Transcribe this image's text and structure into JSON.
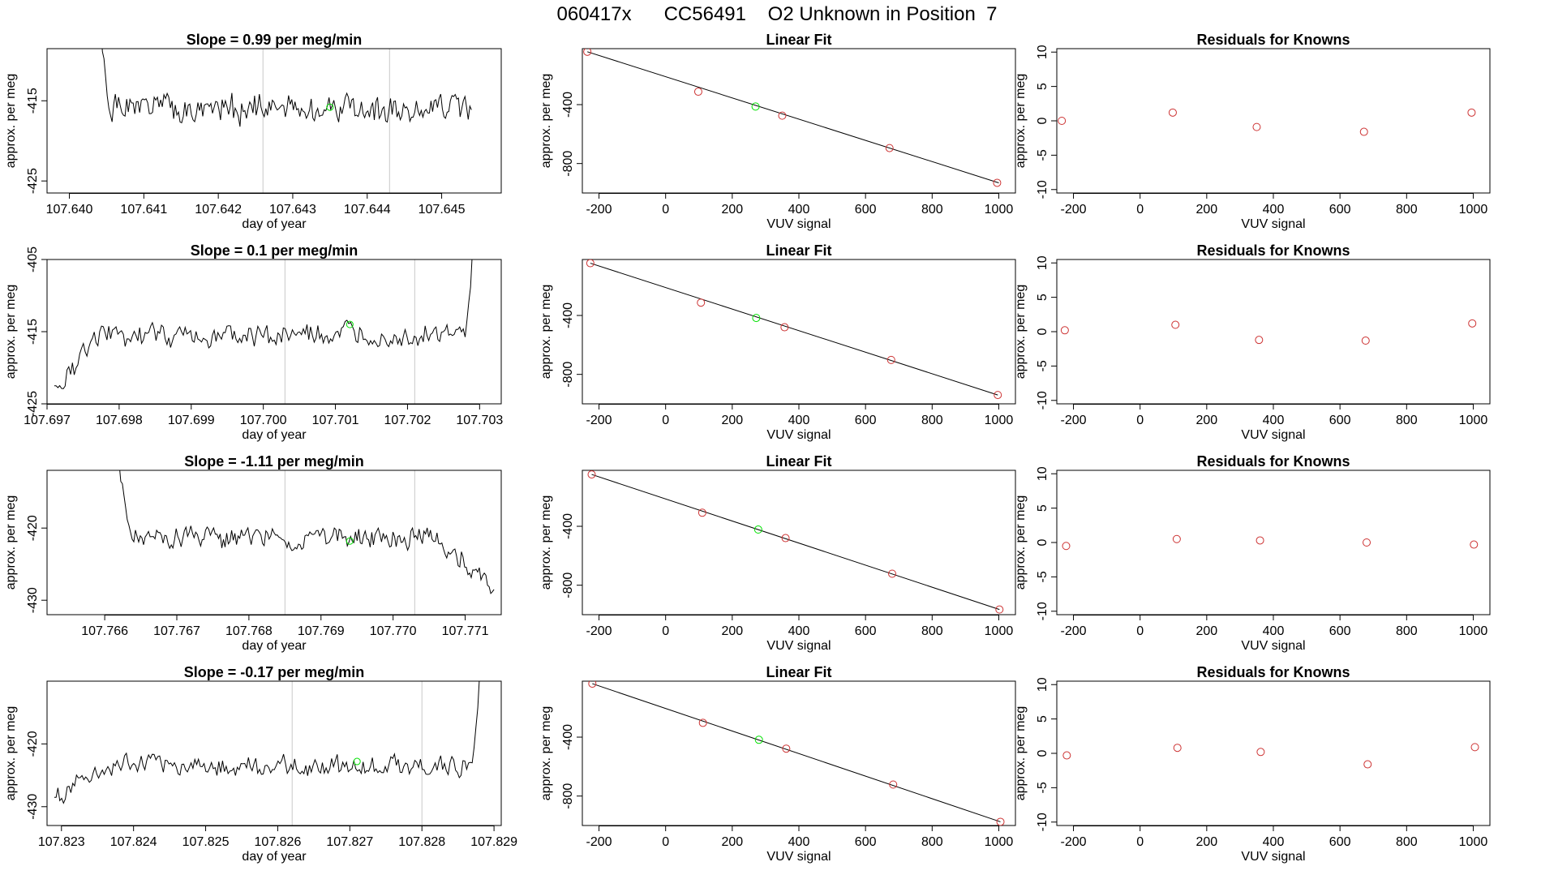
{
  "page_title": "060417x      CC56491    O2 Unknown in Position  7",
  "chart_data": [
    {
      "type": "line",
      "panel": "timeseries",
      "row": 1,
      "title": "Slope =  0.99  per meg/min",
      "xlabel": "day of year",
      "ylabel": "approx. per meg",
      "xlim": [
        107.6397,
        107.6458
      ],
      "ylim": [
        -426.5,
        -408.5
      ],
      "xticks": [
        107.64,
        107.641,
        107.642,
        107.643,
        107.644,
        107.645
      ],
      "xtick_labels": [
        "107.640",
        "107.641",
        "107.642",
        "107.643",
        "107.644",
        "107.645"
      ],
      "yticks": [
        -415,
        -425
      ],
      "ytick_labels": [
        "-415",
        "-425"
      ],
      "vlines": [
        107.6426,
        107.6443
      ],
      "line": {
        "x_start": 107.6404,
        "x_end": 107.6454,
        "level": -416.0,
        "noise": 2.2,
        "start_from": -405,
        "start_len": 5,
        "end_to": -417.0,
        "end_len": 0
      },
      "marker": {
        "x": 107.6435,
        "y": -415.8
      },
      "grid": false,
      "legend": "none"
    },
    {
      "type": "scatter",
      "panel": "linear_fit",
      "row": 1,
      "title": "Linear Fit",
      "xlabel": "VUV signal",
      "ylabel": "approx. per meg",
      "xlim": [
        -250,
        1050
      ],
      "ylim": [
        -1000,
        -20
      ],
      "xticks": [
        -200,
        0,
        200,
        400,
        600,
        800,
        1000
      ],
      "xtick_labels": [
        "-200",
        "0",
        "200",
        "400",
        "600",
        "800",
        "1000"
      ],
      "yticks": [
        -400,
        -800
      ],
      "ytick_labels": [
        "-400",
        "-800"
      ],
      "known_x": [
        -235,
        98,
        350,
        672,
        995
      ],
      "known_y": [
        -41,
        -312,
        -475,
        -695,
        -931
      ],
      "unknown": {
        "x": 270,
        "y": -413
      },
      "fit_line": {
        "x": [
          -235,
          1000
        ],
        "y": [
          -41,
          -931
        ]
      },
      "grid": false,
      "legend": "none"
    },
    {
      "type": "scatter",
      "panel": "residuals",
      "row": 1,
      "title": "Residuals for Knowns",
      "xlabel": "VUV signal",
      "ylabel": "approx. per meg",
      "xlim": [
        -250,
        1050
      ],
      "ylim": [
        -10.5,
        10.5
      ],
      "xticks": [
        -200,
        0,
        200,
        400,
        600,
        800,
        1000
      ],
      "xtick_labels": [
        "-200",
        "0",
        "200",
        "400",
        "600",
        "800",
        "1000"
      ],
      "yticks": [
        10,
        5,
        0,
        -5,
        -10
      ],
      "ytick_labels": [
        "10",
        "5",
        "0",
        "-5",
        "-10"
      ],
      "x": [
        -235,
        98,
        350,
        672,
        995
      ],
      "y": [
        0.0,
        1.2,
        -0.9,
        -1.6,
        1.2
      ],
      "grid": false,
      "legend": "none"
    },
    {
      "type": "line",
      "panel": "timeseries",
      "row": 2,
      "title": "Slope =  0.1  per meg/min",
      "xlabel": "day of year",
      "ylabel": "approx. per meg",
      "xlim": [
        107.697,
        107.7033
      ],
      "ylim": [
        -425,
        -405
      ],
      "xticks": [
        107.697,
        107.698,
        107.699,
        107.7,
        107.701,
        107.702,
        107.703
      ],
      "xtick_labels": [
        "107.697",
        "107.698",
        "107.699",
        "107.700",
        "107.701",
        "107.702",
        "107.703"
      ],
      "yticks": [
        -405,
        -415,
        -425
      ],
      "ytick_labels": [
        "-405",
        "-415",
        "-425"
      ],
      "vlines": [
        107.7003,
        107.7021
      ],
      "line": {
        "x_start": 107.6971,
        "x_end": 107.7029,
        "level": -415.5,
        "noise": 1.9,
        "start_from": -422.5,
        "start_len": 26,
        "end_to": -404,
        "end_len": 4
      },
      "marker": {
        "x": 107.7012,
        "y": -414.0
      },
      "grid": false,
      "legend": "none"
    },
    {
      "type": "scatter",
      "panel": "linear_fit",
      "row": 2,
      "title": "Linear Fit",
      "xlabel": "VUV signal",
      "ylabel": "approx. per meg",
      "xlim": [
        -250,
        1050
      ],
      "ylim": [
        -1000,
        -20
      ],
      "xticks": [
        -200,
        0,
        200,
        400,
        600,
        800,
        1000
      ],
      "xtick_labels": [
        "-200",
        "0",
        "200",
        "400",
        "600",
        "800",
        "1000"
      ],
      "yticks": [
        -400,
        -800
      ],
      "ytick_labels": [
        "-400",
        "-800"
      ],
      "known_x": [
        -226,
        106,
        357,
        677,
        997
      ],
      "known_y": [
        -45,
        -313,
        -480,
        -702,
        -940
      ],
      "unknown": {
        "x": 272,
        "y": -417
      },
      "fit_line": {
        "x": [
          -226,
          997
        ],
        "y": [
          -45,
          -940
        ]
      },
      "grid": false,
      "legend": "none"
    },
    {
      "type": "scatter",
      "panel": "residuals",
      "row": 2,
      "title": "Residuals for Knowns",
      "xlabel": "VUV signal",
      "ylabel": "approx. per meg",
      "xlim": [
        -250,
        1050
      ],
      "ylim": [
        -10.5,
        10.5
      ],
      "xticks": [
        -200,
        0,
        200,
        400,
        600,
        800,
        1000
      ],
      "xtick_labels": [
        "-200",
        "0",
        "200",
        "400",
        "600",
        "800",
        "1000"
      ],
      "yticks": [
        10,
        5,
        0,
        -5,
        -10
      ],
      "ytick_labels": [
        "10",
        "5",
        "0",
        "-5",
        "-10"
      ],
      "x": [
        -226,
        106,
        357,
        677,
        997
      ],
      "y": [
        0.2,
        1.0,
        -1.2,
        -1.3,
        1.2
      ],
      "grid": false,
      "legend": "none"
    },
    {
      "type": "line",
      "panel": "timeseries",
      "row": 3,
      "title": "Slope =  -1.11  per meg/min",
      "xlabel": "day of year",
      "ylabel": "approx. per meg",
      "xlim": [
        107.7652,
        107.7715
      ],
      "ylim": [
        -432,
        -412
      ],
      "xticks": [
        107.766,
        107.767,
        107.768,
        107.769,
        107.77,
        107.771
      ],
      "xtick_labels": [
        "107.766",
        "107.767",
        "107.768",
        "107.769",
        "107.770",
        "107.771"
      ],
      "yticks": [
        -420,
        -430
      ],
      "ytick_labels": [
        "-420",
        "-430"
      ],
      "vlines": [
        107.7685,
        107.7703
      ],
      "line": {
        "x_start": 107.7662,
        "x_end": 107.7714,
        "level": -421.5,
        "noise": 1.9,
        "start_from": -411,
        "start_len": 6,
        "end_to": -428.5,
        "end_len": 36
      },
      "marker": {
        "x": 107.7694,
        "y": -421.8
      },
      "grid": false,
      "legend": "none"
    },
    {
      "type": "scatter",
      "panel": "linear_fit",
      "row": 3,
      "title": "Linear Fit",
      "xlabel": "VUV signal",
      "ylabel": "approx. per meg",
      "xlim": [
        -250,
        1050
      ],
      "ylim": [
        -1000,
        -20
      ],
      "xticks": [
        -200,
        0,
        200,
        400,
        600,
        800,
        1000
      ],
      "xtick_labels": [
        "-200",
        "0",
        "200",
        "400",
        "600",
        "800",
        "1000"
      ],
      "yticks": [
        -400,
        -800
      ],
      "ytick_labels": [
        "-400",
        "-800"
      ],
      "known_x": [
        -222,
        110,
        360,
        680,
        1002
      ],
      "known_y": [
        -48,
        -308,
        -480,
        -722,
        -965
      ],
      "unknown": {
        "x": 278,
        "y": -422
      },
      "fit_line": {
        "x": [
          -222,
          1002
        ],
        "y": [
          -48,
          -965
        ]
      },
      "grid": false,
      "legend": "none"
    },
    {
      "type": "scatter",
      "panel": "residuals",
      "row": 3,
      "title": "Residuals for Knowns",
      "xlabel": "VUV signal",
      "ylabel": "approx. per meg",
      "xlim": [
        -250,
        1050
      ],
      "ylim": [
        -10.5,
        10.5
      ],
      "xticks": [
        -200,
        0,
        200,
        400,
        600,
        800,
        1000
      ],
      "xtick_labels": [
        "-200",
        "0",
        "200",
        "400",
        "600",
        "800",
        "1000"
      ],
      "yticks": [
        10,
        5,
        0,
        -5,
        -10
      ],
      "ytick_labels": [
        "10",
        "5",
        "0",
        "-5",
        "-10"
      ],
      "x": [
        -222,
        110,
        360,
        680,
        1002
      ],
      "y": [
        -0.5,
        0.5,
        0.3,
        0.0,
        -0.3
      ],
      "grid": false,
      "legend": "none"
    },
    {
      "type": "line",
      "panel": "timeseries",
      "row": 4,
      "title": "Slope =  -0.17  per meg/min",
      "xlabel": "day of year",
      "ylabel": "approx. per meg",
      "xlim": [
        107.8228,
        107.8291
      ],
      "ylim": [
        -433,
        -410
      ],
      "xticks": [
        107.823,
        107.824,
        107.825,
        107.826,
        107.827,
        107.828,
        107.829
      ],
      "xtick_labels": [
        "107.823",
        "107.824",
        "107.825",
        "107.826",
        "107.827",
        "107.828",
        "107.829"
      ],
      "yticks": [
        -420,
        -430
      ],
      "ytick_labels": [
        "-420",
        "-430"
      ],
      "vlines": [
        107.8262,
        107.828
      ],
      "line": {
        "x_start": 107.8229,
        "x_end": 107.8288,
        "level": -423.5,
        "noise": 2.0,
        "start_from": -428.5,
        "start_len": 30,
        "end_to": -409,
        "end_len": 4
      },
      "marker": {
        "x": 107.8271,
        "y": -422.8
      },
      "grid": false,
      "legend": "none"
    },
    {
      "type": "scatter",
      "panel": "linear_fit",
      "row": 4,
      "title": "Linear Fit",
      "xlabel": "VUV signal",
      "ylabel": "approx. per meg",
      "xlim": [
        -250,
        1050
      ],
      "ylim": [
        -1000,
        -20
      ],
      "xticks": [
        -200,
        0,
        200,
        400,
        600,
        800,
        1000
      ],
      "xtick_labels": [
        "-200",
        "0",
        "200",
        "400",
        "600",
        "800",
        "1000"
      ],
      "yticks": [
        -400,
        -800
      ],
      "ytick_labels": [
        "-400",
        "-800"
      ],
      "known_x": [
        -220,
        112,
        362,
        683,
        1005
      ],
      "known_y": [
        -37,
        -303,
        -478,
        -722,
        -975
      ],
      "unknown": {
        "x": 280,
        "y": -418
      },
      "fit_line": {
        "x": [
          -220,
          1005
        ],
        "y": [
          -37,
          -975
        ]
      },
      "grid": false,
      "legend": "none"
    },
    {
      "type": "scatter",
      "panel": "residuals",
      "row": 4,
      "title": "Residuals for Knowns",
      "xlabel": "VUV signal",
      "ylabel": "approx. per meg",
      "xlim": [
        -250,
        1050
      ],
      "ylim": [
        -10.5,
        10.5
      ],
      "xticks": [
        -200,
        0,
        200,
        400,
        600,
        800,
        1000
      ],
      "xtick_labels": [
        "-200",
        "0",
        "200",
        "400",
        "600",
        "800",
        "1000"
      ],
      "yticks": [
        10,
        5,
        0,
        -5,
        -10
      ],
      "ytick_labels": [
        "10",
        "5",
        "0",
        "-5",
        "-10"
      ],
      "x": [
        -220,
        112,
        362,
        683,
        1005
      ],
      "y": [
        -0.3,
        0.8,
        0.2,
        -1.6,
        0.9
      ],
      "grid": false,
      "legend": "none"
    }
  ],
  "colors": {
    "axis": "#000000",
    "series": "#000000",
    "known_marker": "#cd3333",
    "unknown_marker": "#00e000",
    "vline": "#c8c8c8"
  }
}
